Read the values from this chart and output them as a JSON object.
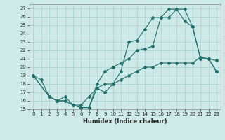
{
  "xlabel": "Humidex (Indice chaleur)",
  "background_color": "#ceeae8",
  "grid_color": "#a8d0cc",
  "line_color": "#1e6e6a",
  "xlim": [
    -0.5,
    23.5
  ],
  "ylim": [
    15,
    27.5
  ],
  "xticks": [
    0,
    1,
    2,
    3,
    4,
    5,
    6,
    7,
    8,
    9,
    10,
    11,
    12,
    13,
    14,
    15,
    16,
    17,
    18,
    19,
    20,
    21,
    22,
    23
  ],
  "yticks": [
    15,
    16,
    17,
    18,
    19,
    20,
    21,
    22,
    23,
    24,
    25,
    26,
    27
  ],
  "line1_x": [
    0,
    1,
    2,
    3,
    4,
    5,
    6,
    7,
    8,
    9,
    10,
    11,
    12,
    13,
    14,
    15,
    16,
    17,
    18,
    19,
    20,
    21,
    22,
    23
  ],
  "line1_y": [
    19,
    18.5,
    16.5,
    16,
    16,
    15.5,
    15.2,
    15.2,
    17.5,
    17,
    18,
    19.5,
    23,
    23.2,
    24.5,
    25.9,
    25.9,
    26.9,
    26.9,
    25.5,
    24.8,
    21,
    21,
    20.8
  ],
  "line2_x": [
    0,
    2,
    3,
    4,
    5,
    6,
    7,
    8,
    9,
    10,
    11,
    12,
    13,
    14,
    15,
    16,
    17,
    18,
    19,
    20,
    21,
    22,
    23
  ],
  "line2_y": [
    19,
    16.5,
    16,
    16,
    15.5,
    15.2,
    15.2,
    18,
    19.5,
    20,
    20.5,
    21,
    22,
    22.2,
    22.5,
    25.9,
    25.9,
    26.9,
    26.9,
    24.8,
    21,
    21,
    19.5
  ],
  "line3_x": [
    0,
    2,
    3,
    4,
    5,
    6,
    7,
    8,
    9,
    10,
    11,
    12,
    13,
    14,
    15,
    16,
    17,
    18,
    19,
    20,
    21,
    22,
    23
  ],
  "line3_y": [
    19,
    16.5,
    16,
    16.5,
    15.5,
    15.5,
    16.5,
    17.5,
    18,
    18,
    18.5,
    19,
    19.5,
    20,
    20,
    20.5,
    20.5,
    20.5,
    20.5,
    20.5,
    21.2,
    21,
    19.5
  ]
}
